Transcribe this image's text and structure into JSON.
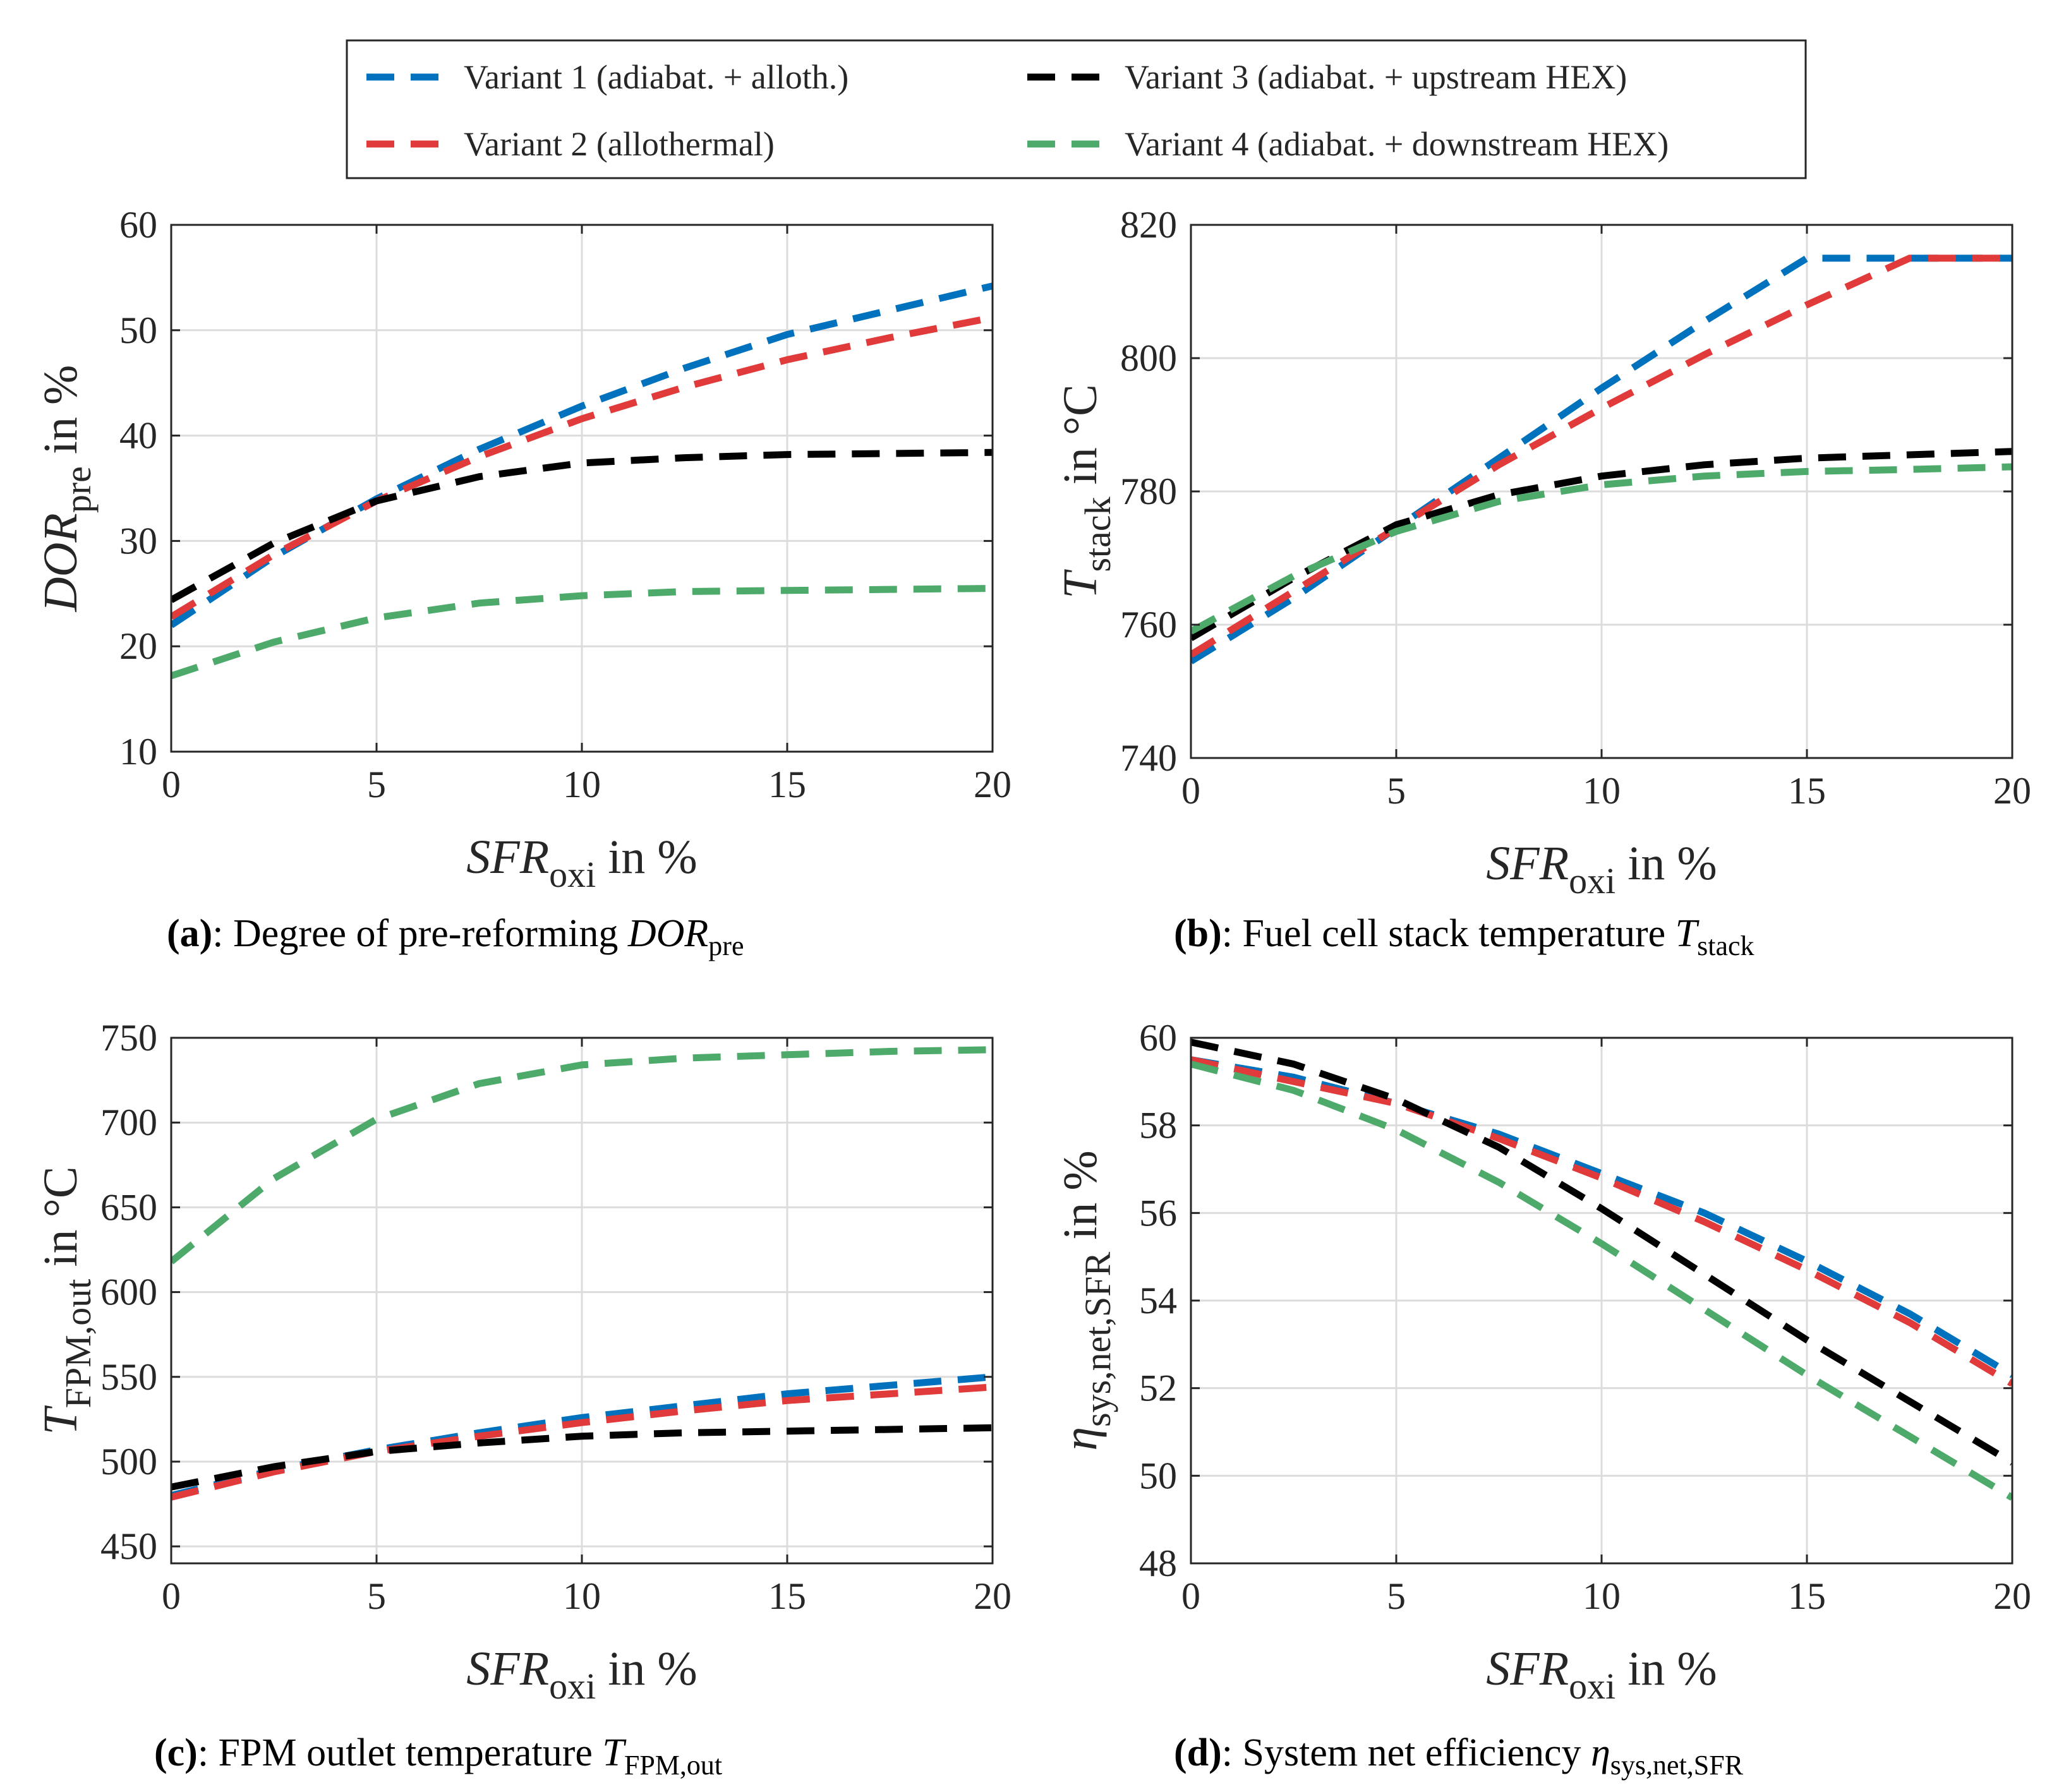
{
  "legend": {
    "entries": [
      {
        "label": "Variant 1 (adiabat. + alloth.)",
        "color": "#0072BD"
      },
      {
        "label": "Variant 2 (allothermal)",
        "color": "#E03A3A"
      },
      {
        "label": "Variant 3 (adiabat. + upstream HEX)",
        "color": "#000000"
      },
      {
        "label": "Variant 4 (adiabat. + downstream HEX)",
        "color": "#4DAA6A"
      }
    ]
  },
  "chart_data": [
    {
      "id": "a",
      "type": "line",
      "caption": {
        "tag": "(a)",
        "text": ": Degree of pre-reforming ",
        "sym": "DOR",
        "sub": "pre"
      },
      "xlabel": {
        "sym": "SFR",
        "sub": "oxi",
        "rest": " in %"
      },
      "ylabel": {
        "sym": "DOR",
        "sub": "pre",
        "rest": " in %"
      },
      "xlim": [
        0,
        20
      ],
      "ylim": [
        10,
        60
      ],
      "xticks": [
        "0",
        "5",
        "10",
        "15",
        "20"
      ],
      "yticks": [
        "10",
        "20",
        "30",
        "40",
        "50",
        "60"
      ],
      "x": [
        0,
        2.5,
        5,
        7.5,
        10,
        12.5,
        15,
        17.5,
        20
      ],
      "series": [
        {
          "name": "Variant 1 (adiabat. + alloth.)",
          "values": [
            22,
            28.5,
            34,
            38.7,
            42.8,
            46.4,
            49.6,
            51.9,
            54.2
          ]
        },
        {
          "name": "Variant 2 (allothermal)",
          "values": [
            22.8,
            28.7,
            33.8,
            38,
            41.6,
            44.6,
            47.2,
            49.3,
            51.2
          ]
        },
        {
          "name": "Variant 3 (adiabat. + upstream HEX)",
          "values": [
            24.4,
            29.8,
            33.8,
            36.1,
            37.4,
            37.9,
            38.2,
            38.3,
            38.4
          ]
        },
        {
          "name": "Variant 4 (adiabat. + downstream HEX)",
          "values": [
            17.2,
            20.4,
            22.7,
            24.1,
            24.8,
            25.2,
            25.3,
            25.4,
            25.5
          ]
        }
      ]
    },
    {
      "id": "b",
      "type": "line",
      "caption": {
        "tag": "(b)",
        "text": ": Fuel cell stack temperature ",
        "sym": "T",
        "sub": "stack"
      },
      "xlabel": {
        "sym": "SFR",
        "sub": "oxi",
        "rest": " in %"
      },
      "ylabel": {
        "sym": "T",
        "sub": "stack",
        "rest": " in °C"
      },
      "xlim": [
        0,
        20
      ],
      "ylim": [
        740,
        820
      ],
      "xticks": [
        "0",
        "5",
        "10",
        "15",
        "20"
      ],
      "yticks": [
        "740",
        "760",
        "780",
        "800",
        "820"
      ],
      "x": [
        0,
        2.5,
        5,
        7.5,
        10,
        12.5,
        15,
        17.5,
        20
      ],
      "series": [
        {
          "name": "Variant 1 (adiabat. + alloth.)",
          "values": [
            754.5,
            764,
            774.5,
            785,
            795.5,
            805.5,
            815,
            815,
            815
          ]
        },
        {
          "name": "Variant 2 (allothermal)",
          "values": [
            755.5,
            765,
            774.5,
            784,
            792.5,
            800.5,
            808,
            815,
            815
          ]
        },
        {
          "name": "Variant 3 (adiabat. + upstream HEX)",
          "values": [
            758,
            767,
            775,
            779.5,
            782.3,
            784,
            785,
            785.5,
            786
          ]
        },
        {
          "name": "Variant 4 (adiabat. + downstream HEX)",
          "values": [
            759,
            767.3,
            774,
            778.5,
            781,
            782.3,
            783,
            783.3,
            783.7
          ]
        }
      ]
    },
    {
      "id": "c",
      "type": "line",
      "caption": {
        "tag": "(c)",
        "text": ": FPM outlet temperature ",
        "sym": "T",
        "sub": "FPM,out"
      },
      "xlabel": {
        "sym": "SFR",
        "sub": "oxi",
        "rest": " in %"
      },
      "ylabel": {
        "sym": "T",
        "sub": "FPM,out",
        "rest": " in °C"
      },
      "xlim": [
        0,
        20
      ],
      "ylim": [
        440,
        750
      ],
      "xticks": [
        "0",
        "5",
        "10",
        "15",
        "20"
      ],
      "yticks": [
        "450",
        "500",
        "550",
        "600",
        "650",
        "700",
        "750"
      ],
      "x": [
        0,
        2.5,
        5,
        7.5,
        10,
        12.5,
        15,
        17.5,
        20
      ],
      "series": [
        {
          "name": "Variant 1 (adiabat. + alloth.)",
          "values": [
            480,
            495,
            507,
            517,
            526,
            533,
            540,
            545,
            550
          ]
        },
        {
          "name": "Variant 2 (allothermal)",
          "values": [
            479,
            494,
            506,
            515,
            523,
            530,
            536,
            540,
            544
          ]
        },
        {
          "name": "Variant 3 (adiabat. + upstream HEX)",
          "values": [
            485,
            497,
            506,
            511,
            515,
            517,
            518,
            519,
            520
          ]
        },
        {
          "name": "Variant 4 (adiabat. + downstream HEX)",
          "values": [
            618,
            667,
            702,
            723,
            734,
            738,
            740,
            742,
            743
          ]
        }
      ]
    },
    {
      "id": "d",
      "type": "line",
      "caption": {
        "tag": "(d)",
        "text": ": System net efficiency ",
        "sym": "η",
        "sub": "sys,net,SFR"
      },
      "xlabel": {
        "sym": "SFR",
        "sub": "oxi",
        "rest": " in %"
      },
      "ylabel": {
        "sym": "η",
        "sub": "sys,net,SFR",
        "rest": " in %"
      },
      "xlim": [
        0,
        20
      ],
      "ylim": [
        48,
        60
      ],
      "xticks": [
        "0",
        "5",
        "10",
        "15",
        "20"
      ],
      "yticks": [
        "48",
        "50",
        "52",
        "54",
        "56",
        "58",
        "60"
      ],
      "x": [
        0,
        2.5,
        5,
        7.5,
        10,
        12.5,
        15,
        17.5,
        20
      ],
      "series": [
        {
          "name": "Variant 1 (adiabat. + alloth.)",
          "values": [
            59.5,
            59.1,
            58.5,
            57.8,
            56.9,
            56,
            54.9,
            53.7,
            52.3
          ]
        },
        {
          "name": "Variant 2 (allothermal)",
          "values": [
            59.5,
            59,
            58.5,
            57.7,
            56.8,
            55.8,
            54.7,
            53.5,
            52.1
          ]
        },
        {
          "name": "Variant 3 (adiabat. + upstream HEX)",
          "values": [
            59.9,
            59.4,
            58.6,
            57.5,
            56.1,
            54.6,
            53.1,
            51.7,
            50.3
          ]
        },
        {
          "name": "Variant 4 (adiabat. + downstream HEX)",
          "values": [
            59.4,
            58.8,
            57.9,
            56.7,
            55.3,
            53.8,
            52.3,
            50.9,
            49.5
          ]
        }
      ]
    }
  ]
}
